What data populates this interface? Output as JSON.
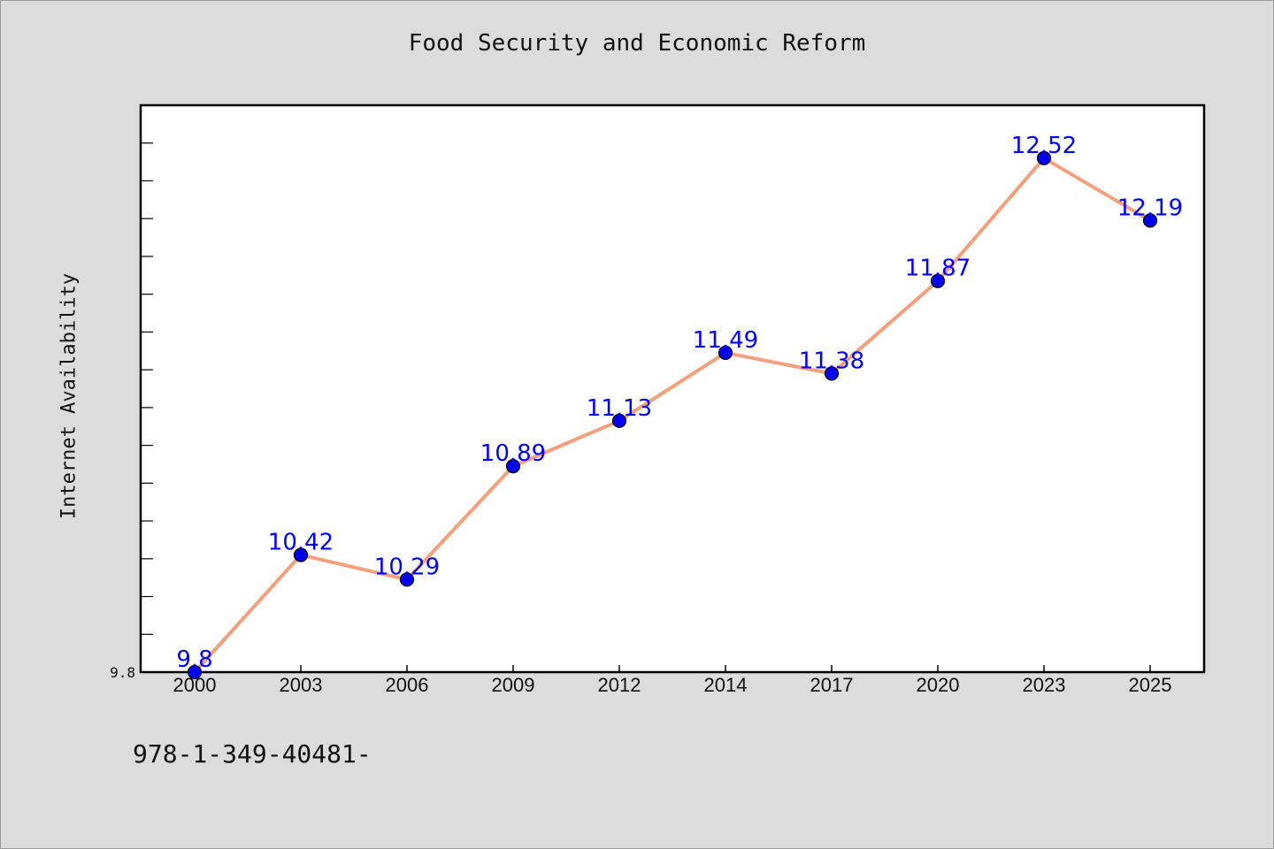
{
  "chart_data": {
    "type": "line",
    "title": "Food Security and Economic Reform",
    "xlabel": "",
    "ylabel": "Internet Availability",
    "categories": [
      "2000",
      "2003",
      "2006",
      "2009",
      "2012",
      "2014",
      "2017",
      "2020",
      "2023",
      "2025"
    ],
    "series": [
      {
        "values": [
          9.8,
          10.42,
          10.29,
          10.89,
          11.13,
          11.49,
          11.38,
          11.87,
          12.52,
          12.19
        ],
        "data_labels": [
          "9.8",
          "10.42",
          "10.29",
          "10.89",
          "11.13",
          "11.49",
          "11.38",
          "11.87",
          "12.52",
          "12.19"
        ],
        "line_color": "#f4a07c",
        "marker_color": "#0000ee"
      }
    ],
    "ylim": [
      9.8,
      12.8
    ],
    "y_tick_labels": [
      "9.8"
    ],
    "y_minor_tick_step": 0.2,
    "grid": false,
    "label_color": "#0000ff"
  },
  "footnote": "978-1-349-40481-"
}
